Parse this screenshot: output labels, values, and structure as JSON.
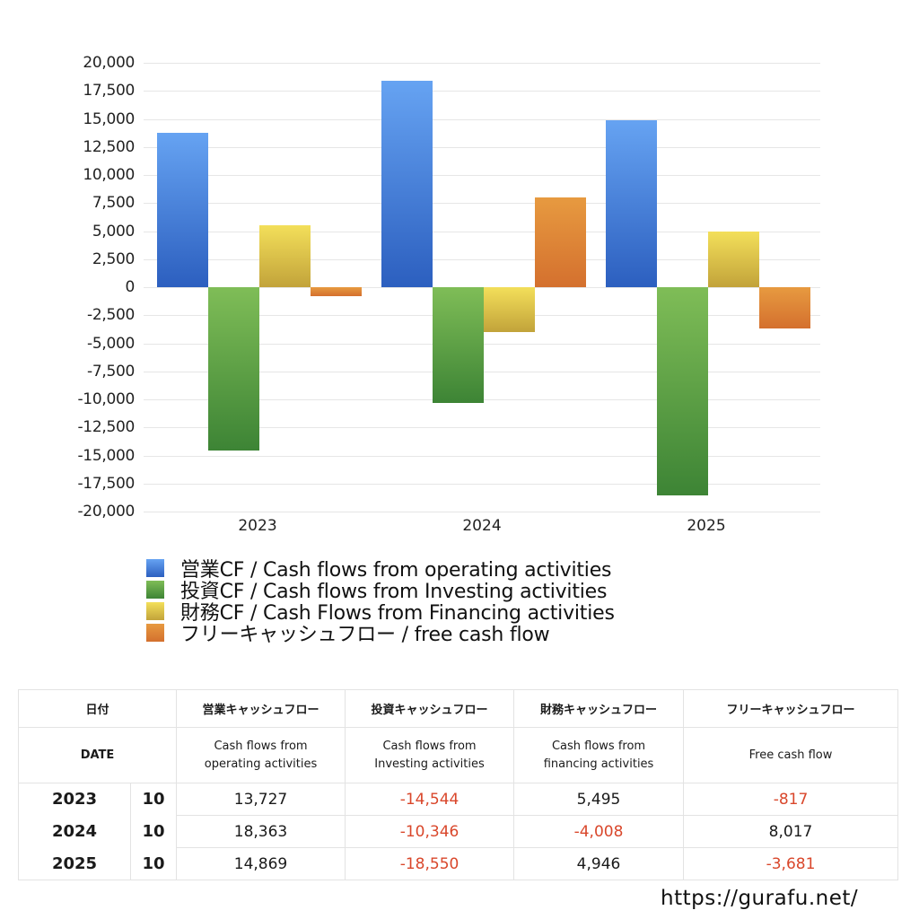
{
  "chart_data": {
    "type": "bar",
    "title": "",
    "xlabel": "",
    "ylabel": "",
    "categories": [
      "2023",
      "2024",
      "2025"
    ],
    "ylim": [
      -20000,
      20000
    ],
    "yticks": [
      "20,000",
      "17,500",
      "15,000",
      "12,500",
      "10,000",
      "7,500",
      "5,000",
      "2,500",
      "0",
      "-2,500",
      "-5,000",
      "-7,500",
      "-10,000",
      "-12,500",
      "-15,000",
      "-17,500",
      "-20,000"
    ],
    "grid": true,
    "legend_position": "bottom",
    "series": [
      {
        "name": "営業CF / Cash flows from operating activities",
        "values": [
          13727,
          18363,
          14869
        ],
        "color_top": "#66a3f2",
        "color_bottom": "#2c5fbf"
      },
      {
        "name": "投資CF / Cash flows from Investing activities",
        "values": [
          -14544,
          -10346,
          -18550
        ],
        "color_top": "#7fbd57",
        "color_bottom": "#3d8435"
      },
      {
        "name": "財務CF / Cash Flows from Financing activities",
        "values": [
          5495,
          -4008,
          4946
        ],
        "color_top": "#f3df5a",
        "color_bottom": "#c2a33a"
      },
      {
        "name": "フリーキャッシュフロー / free cash flow",
        "values": [
          -817,
          8017,
          -3681
        ],
        "color_top": "#e79a40",
        "color_bottom": "#d4702e"
      }
    ]
  },
  "legend": [
    {
      "label": "営業CF / Cash flows from operating activities"
    },
    {
      "label": "投資CF / Cash flows from Investing activities"
    },
    {
      "label": "財務CF / Cash Flows from Financing activities"
    },
    {
      "label": "フリーキャッシュフロー / free cash flow"
    }
  ],
  "table": {
    "header_jp": {
      "date": "日付",
      "operating": "営業キャッシュフロー",
      "investing": "投資キャッシュフロー",
      "financing": "財務キャッシュフロー",
      "free": "フリーキャッシュフロー"
    },
    "header_en": {
      "date": "DATE",
      "operating_1": "Cash flows from",
      "operating_2": "operating activities",
      "investing_1": "Cash flows from",
      "investing_2": "Investing activities",
      "financing_1": "Cash flows from",
      "financing_2": "financing activities",
      "free": "Free cash flow"
    },
    "rows": [
      {
        "year": "2023",
        "month": "10",
        "operating": "13,727",
        "investing": "-14,544",
        "financing": "5,495",
        "free": "-817"
      },
      {
        "year": "2024",
        "month": "10",
        "operating": "18,363",
        "investing": "-10,346",
        "financing": "-4,008",
        "free": "8,017"
      },
      {
        "year": "2025",
        "month": "10",
        "operating": "14,869",
        "investing": "-18,550",
        "financing": "4,946",
        "free": "-3,681"
      }
    ]
  },
  "footer": {
    "url": "https://gurafu.net/"
  }
}
